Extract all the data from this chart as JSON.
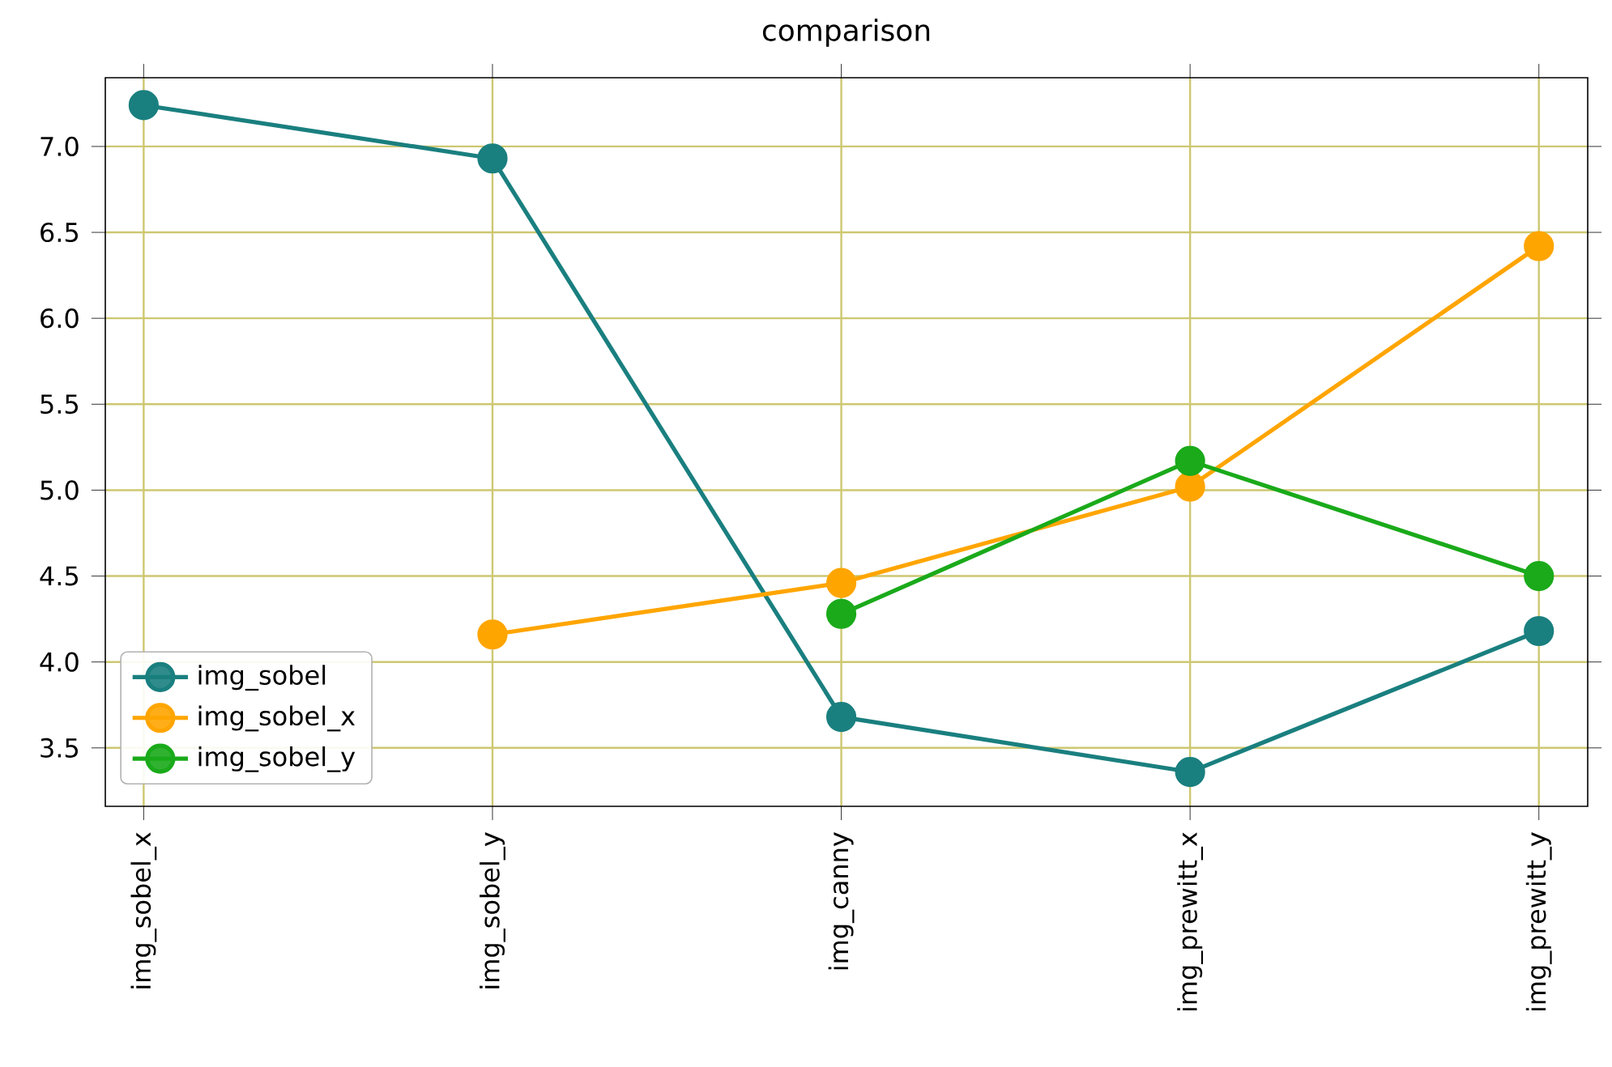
{
  "chart_data": {
    "type": "line",
    "title": "comparison",
    "categories": [
      "img_sobel_x",
      "img_sobel_y",
      "img_canny",
      "img_prewitt_x",
      "img_prewitt_y"
    ],
    "series": [
      {
        "name": "img_sobel",
        "color": "#1a7f7f",
        "values": [
          7.24,
          6.93,
          3.68,
          3.36,
          4.18
        ]
      },
      {
        "name": "img_sobel_x",
        "color": "#ffa500",
        "values": [
          null,
          4.16,
          4.46,
          5.02,
          6.42
        ]
      },
      {
        "name": "img_sobel_y",
        "color": "#1aaa1a",
        "values": [
          null,
          null,
          4.28,
          5.17,
          4.5
        ]
      }
    ],
    "ylim": [
      3.16,
      7.4
    ],
    "yticks": [
      3.5,
      {
        "value": 4,
        "label": "4.0"
      },
      4.5,
      {
        "value": 5,
        "label": "5.0"
      },
      5.5,
      {
        "value": 6,
        "label": "6.0"
      },
      6.5,
      {
        "value": 7,
        "label": "7.0"
      }
    ],
    "grid": true,
    "legend": "bottom left",
    "marker": "circle",
    "line_style": "solid"
  }
}
